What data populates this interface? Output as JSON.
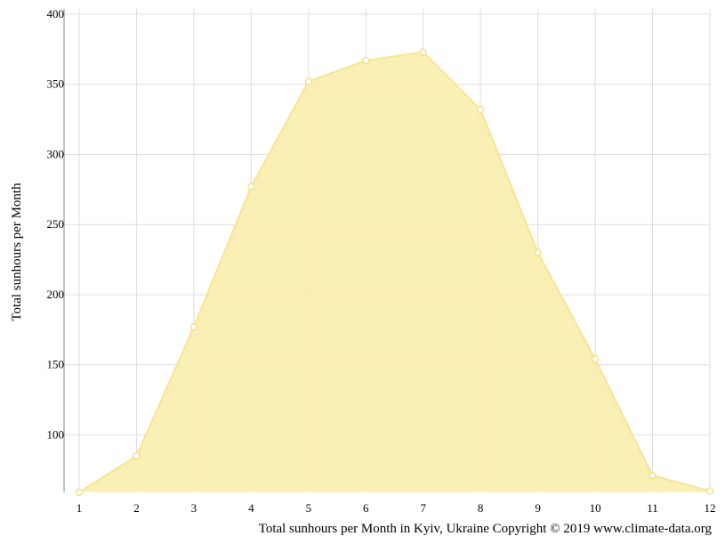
{
  "chart_data": {
    "type": "area",
    "x": [
      1,
      2,
      3,
      4,
      5,
      6,
      7,
      8,
      9,
      10,
      11,
      12
    ],
    "series": [
      {
        "values": [
          59,
          85,
          177,
          277,
          352,
          367,
          373,
          332,
          230,
          154,
          71,
          60
        ]
      }
    ],
    "ylabel": "Total sunhours per Month",
    "xlabel": "",
    "ylim": [
      59,
      400
    ],
    "yticks": [
      100,
      150,
      200,
      250,
      300,
      350,
      400
    ],
    "xticks": [
      1,
      2,
      3,
      4,
      5,
      6,
      7,
      8,
      9,
      10,
      11,
      12
    ],
    "grid": true,
    "colors": {
      "fill": "#faeeb0",
      "line": "#f6e592",
      "marker_stroke": "#f0dc78",
      "grid": "#dddddd",
      "axis": "#888888"
    }
  },
  "caption": "Total sunhours per Month in Kyiv, Ukraine Copyright © 2019 www.climate-data.org"
}
